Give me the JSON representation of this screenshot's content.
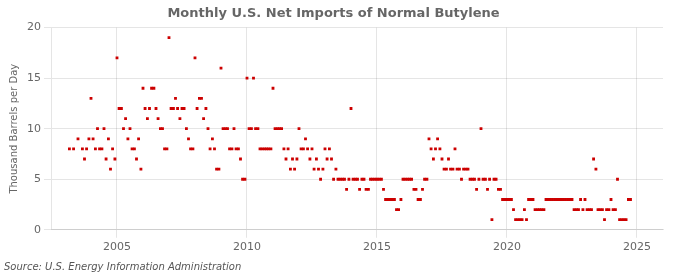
{
  "chart_data": {
    "type": "scatter",
    "title": "Monthly U.S. Net Imports of Normal Butylene",
    "y_label": "Thousand Barrels per Day",
    "annotations": [
      "Source: U.S. Energy Information Administration"
    ],
    "color": "#cc0000",
    "marker": "square",
    "grid": true,
    "xlim": [
      2002.5,
      2026.0
    ],
    "xticks": [
      2005,
      2010,
      2015,
      2020,
      2025
    ],
    "ylim": [
      0,
      20
    ],
    "yticks": [
      0,
      5,
      10,
      15,
      20
    ],
    "x": [
      2003.17,
      2003.33,
      2003.5,
      2003.67,
      2003.75,
      2003.83,
      2003.92,
      2004.0,
      2004.08,
      2004.17,
      2004.25,
      2004.33,
      2004.42,
      2004.5,
      2004.58,
      2004.67,
      2004.75,
      2004.83,
      2004.92,
      2005.0,
      2005.08,
      2005.17,
      2005.25,
      2005.33,
      2005.42,
      2005.5,
      2005.58,
      2005.67,
      2005.75,
      2005.83,
      2005.92,
      2006.0,
      2006.08,
      2006.17,
      2006.25,
      2006.33,
      2006.42,
      2006.5,
      2006.58,
      2006.67,
      2006.75,
      2006.83,
      2006.92,
      2007.0,
      2007.08,
      2007.17,
      2007.25,
      2007.33,
      2007.42,
      2007.5,
      2007.58,
      2007.67,
      2007.75,
      2007.83,
      2007.92,
      2008.0,
      2008.08,
      2008.17,
      2008.25,
      2008.33,
      2008.42,
      2008.5,
      2008.58,
      2008.67,
      2008.75,
      2008.83,
      2008.92,
      2009.0,
      2009.08,
      2009.17,
      2009.25,
      2009.33,
      2009.42,
      2009.5,
      2009.58,
      2009.67,
      2009.75,
      2009.83,
      2009.92,
      2010.0,
      2010.08,
      2010.17,
      2010.25,
      2010.33,
      2010.42,
      2010.5,
      2010.58,
      2010.67,
      2010.75,
      2010.83,
      2010.92,
      2011.0,
      2011.08,
      2011.17,
      2011.25,
      2011.33,
      2011.42,
      2011.5,
      2011.58,
      2011.67,
      2011.75,
      2011.83,
      2011.92,
      2012.0,
      2012.08,
      2012.17,
      2012.25,
      2012.33,
      2012.42,
      2012.5,
      2012.58,
      2012.67,
      2012.75,
      2012.83,
      2012.92,
      2013.0,
      2013.08,
      2013.17,
      2013.25,
      2013.33,
      2013.42,
      2013.5,
      2013.58,
      2013.67,
      2013.75,
      2013.83,
      2013.92,
      2014.0,
      2014.08,
      2014.17,
      2014.25,
      2014.33,
      2014.42,
      2014.5,
      2014.58,
      2014.67,
      2014.75,
      2014.83,
      2014.92,
      2015.0,
      2015.08,
      2015.17,
      2015.25,
      2015.33,
      2015.42,
      2015.5,
      2015.58,
      2015.67,
      2015.75,
      2015.83,
      2015.92,
      2016.0,
      2016.08,
      2016.17,
      2016.25,
      2016.33,
      2016.42,
      2016.5,
      2016.58,
      2016.67,
      2016.75,
      2016.83,
      2016.92,
      2017.0,
      2017.08,
      2017.17,
      2017.25,
      2017.33,
      2017.42,
      2017.5,
      2017.58,
      2017.67,
      2017.75,
      2017.83,
      2017.92,
      2018.0,
      2018.08,
      2018.17,
      2018.25,
      2018.33,
      2018.42,
      2018.5,
      2018.58,
      2018.67,
      2018.75,
      2018.83,
      2018.92,
      2019.0,
      2019.08,
      2019.17,
      2019.25,
      2019.33,
      2019.42,
      2019.5,
      2019.58,
      2019.67,
      2019.75,
      2019.83,
      2019.92,
      2020.0,
      2020.08,
      2020.17,
      2020.25,
      2020.33,
      2020.42,
      2020.5,
      2020.58,
      2020.67,
      2020.75,
      2020.83,
      2020.92,
      2021.0,
      2021.08,
      2021.17,
      2021.25,
      2021.33,
      2021.42,
      2021.5,
      2021.58,
      2021.67,
      2021.75,
      2021.83,
      2021.92,
      2022.0,
      2022.08,
      2022.17,
      2022.25,
      2022.33,
      2022.42,
      2022.5,
      2022.58,
      2022.67,
      2022.75,
      2022.83,
      2022.92,
      2023.0,
      2023.08,
      2023.17,
      2023.25,
      2023.33,
      2023.42,
      2023.5,
      2023.58,
      2023.67,
      2023.75,
      2023.83,
      2023.92,
      2024.0,
      2024.08,
      2024.17,
      2024.25,
      2024.33,
      2024.42,
      2024.5,
      2024.58,
      2024.67,
      2024.75
    ],
    "values": [
      8,
      8,
      9,
      8,
      7,
      8,
      9,
      13,
      9,
      8,
      10,
      8,
      8,
      10,
      7,
      9,
      6,
      8,
      7,
      17,
      12,
      12,
      10,
      11,
      9,
      10,
      8,
      8,
      7,
      9,
      6,
      14,
      12,
      11,
      12,
      14,
      14,
      12,
      11,
      10,
      10,
      8,
      8,
      19,
      12,
      12,
      13,
      12,
      11,
      12,
      12,
      10,
      9,
      8,
      8,
      17,
      12,
      13,
      13,
      11,
      12,
      10,
      8,
      9,
      8,
      6,
      6,
      16,
      10,
      10,
      10,
      8,
      8,
      10,
      8,
      8,
      7,
      5,
      5,
      15,
      10,
      10,
      15,
      10,
      10,
      8,
      8,
      8,
      8,
      8,
      8,
      14,
      10,
      10,
      10,
      10,
      8,
      7,
      8,
      6,
      7,
      6,
      7,
      10,
      8,
      8,
      9,
      8,
      7,
      8,
      6,
      7,
      6,
      5,
      6,
      8,
      7,
      8,
      7,
      5,
      6,
      5,
      5,
      5,
      5,
      4,
      5,
      12,
      5,
      5,
      5,
      4,
      5,
      5,
      4,
      4,
      5,
      5,
      5,
      5,
      5,
      5,
      4,
      3,
      3,
      3,
      3,
      3,
      2,
      2,
      3,
      5,
      5,
      5,
      5,
      5,
      4,
      4,
      3,
      3,
      4,
      5,
      5,
      9,
      8,
      7,
      8,
      9,
      8,
      7,
      6,
      6,
      7,
      6,
      6,
      8,
      6,
      6,
      5,
      6,
      6,
      6,
      5,
      5,
      5,
      4,
      5,
      10,
      5,
      5,
      4,
      5,
      1,
      5,
      5,
      4,
      4,
      3,
      3,
      3,
      3,
      3,
      2,
      1,
      1,
      1,
      1,
      2,
      1,
      3,
      3,
      3,
      2,
      2,
      2,
      2,
      2,
      3,
      3,
      3,
      3,
      3,
      3,
      3,
      3,
      3,
      3,
      3,
      3,
      3,
      2,
      2,
      2,
      3,
      2,
      3,
      2,
      2,
      2,
      7,
      6,
      2,
      2,
      2,
      1,
      2,
      2,
      3,
      2,
      2,
      5,
      1,
      1,
      1,
      1,
      3,
      3
    ]
  }
}
